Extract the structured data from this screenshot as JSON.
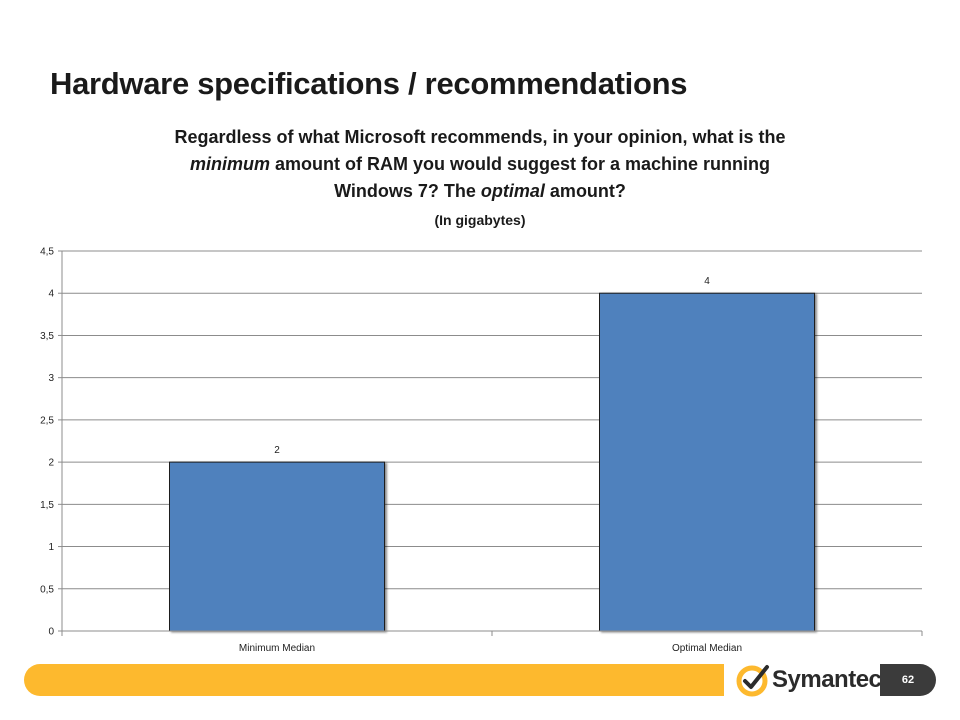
{
  "slide": {
    "title": "Hardware specifications / recommendations",
    "page_number": "62"
  },
  "question": {
    "part1": "Regardless of what Microsoft recommends, in your opinion, what is the",
    "minimum_word": "minimum",
    "part2": " amount of RAM you would suggest for a machine running",
    "part3": "Windows 7? The ",
    "optimal_word": "optimal",
    "part4": " amount?",
    "units": "(In gigabytes)"
  },
  "logo": {
    "text": "Symantec",
    "suffix": ".",
    "accent_color": "#fdb92e"
  },
  "colors": {
    "bar_fill": "#4f81bd",
    "footer_bar": "#fdb92e",
    "page_badge": "#3b3b3b"
  },
  "chart_data": {
    "type": "bar",
    "categories": [
      "Minimum Median",
      "Optimal Median"
    ],
    "values": [
      2,
      4
    ],
    "data_labels": [
      "2",
      "4"
    ],
    "ylim": [
      0,
      4.5
    ],
    "yticks": [
      0,
      0.5,
      1,
      1.5,
      2,
      2.5,
      3,
      3.5,
      4,
      4.5
    ],
    "ytick_labels": [
      "0",
      "0,5",
      "1",
      "1,5",
      "2",
      "2,5",
      "3",
      "3,5",
      "4",
      "4,5"
    ],
    "grid": true,
    "legend": "none"
  }
}
